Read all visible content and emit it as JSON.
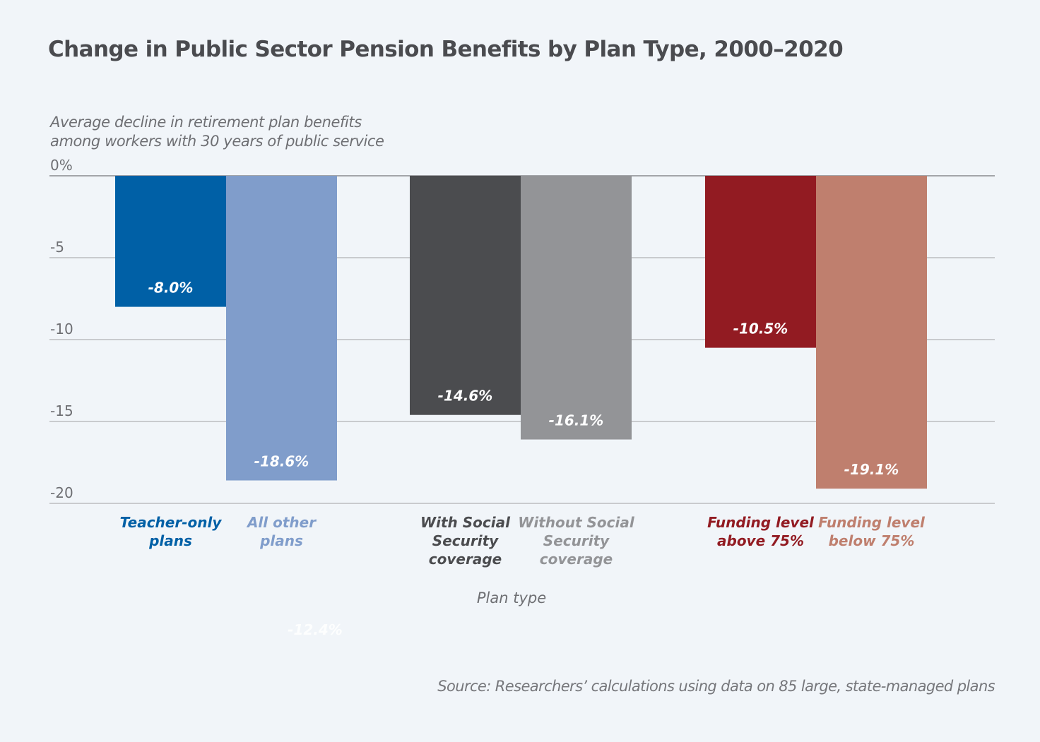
{
  "chart_data": {
    "type": "bar",
    "title": "Change in Public Sector Pension Benefits by Plan Type, 2000–2020",
    "subtitle": [
      "Average decline in retirement plan benefits",
      "among workers with 30 years of public service"
    ],
    "xlabel": "Plan type",
    "ylabel": "Average decline in retirement plan benefits among workers with 30 years of public service",
    "ylim": [
      -20,
      0
    ],
    "yticks": [
      0,
      -5,
      -10,
      -15,
      -20
    ],
    "ytick_labels": [
      "0%",
      "-5",
      "-10",
      "-15",
      "-20"
    ],
    "grid": true,
    "groups": [
      {
        "name": "Teacher vs other",
        "bars": [
          {
            "category": [
              "Teacher-only",
              "plans"
            ],
            "value": -8.0,
            "label": "-8.0%",
            "color": "#0060a6"
          },
          {
            "category": [
              "All other",
              "plans"
            ],
            "value": -18.6,
            "label": "-18.6%",
            "color": "#809dcb"
          }
        ]
      },
      {
        "name": "Social Security coverage",
        "bars": [
          {
            "category": [
              "With Social",
              "Security",
              "coverage"
            ],
            "value": -14.6,
            "label": "-14.6%",
            "color": "#4b4c4f"
          },
          {
            "category": [
              "Without Social",
              "Security",
              "coverage"
            ],
            "value": -16.1,
            "label": "-16.1%",
            "color": "#939497"
          }
        ]
      },
      {
        "name": "Funding level",
        "bars": [
          {
            "category": [
              "Funding level",
              "above 75%"
            ],
            "value": -10.5,
            "label": "-10.5%",
            "color": "#921b22"
          },
          {
            "category": [
              "Funding level",
              "below 75%"
            ],
            "value": -19.1,
            "label": "-19.1%",
            "color": "#bf7f6e"
          }
        ]
      }
    ],
    "annotations": [
      {
        "text": "-12.4%",
        "note": "faint white stray label below chart"
      }
    ],
    "source": "Source: Researchers’ calculations using data on 85 large, state-managed plans"
  },
  "colors": {
    "background": "#f1f5f9",
    "gridline": "#c9cbce",
    "zero_line": "#a3a5a9",
    "text": "#4a4b4f",
    "muted_text": "#6e6f73"
  }
}
